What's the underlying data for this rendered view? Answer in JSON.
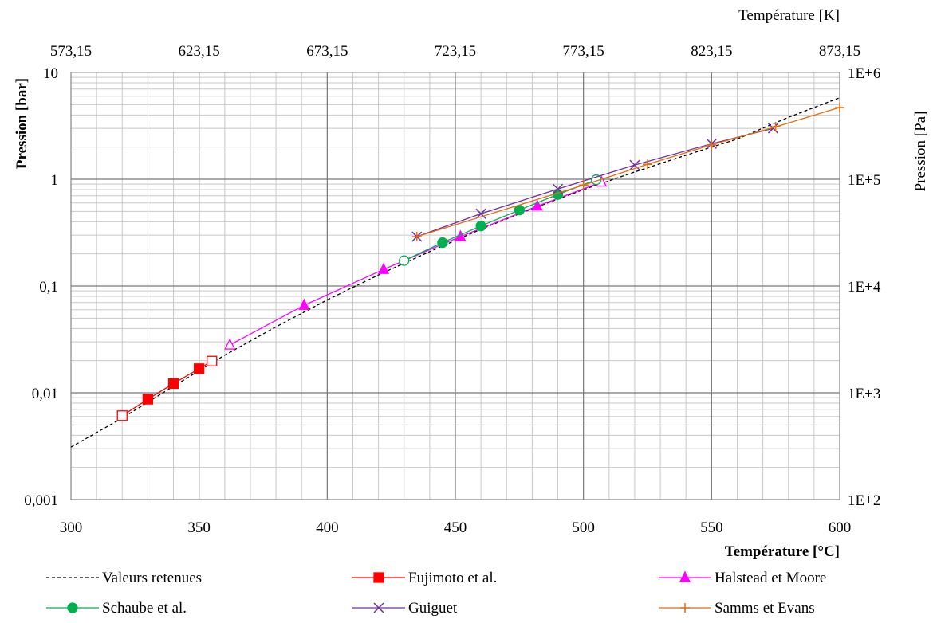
{
  "chart_data": {
    "type": "scatter",
    "x_axis": {
      "label": "Température [°C]",
      "range": [
        300,
        600
      ],
      "ticks": [
        "300",
        "350",
        "400",
        "450",
        "500",
        "550",
        "600"
      ],
      "tick_values": [
        300,
        350,
        400,
        450,
        500,
        550,
        600
      ]
    },
    "x2_axis": {
      "label": "Température [K]",
      "ticks": [
        "573,15",
        "623,15",
        "673,15",
        "723,15",
        "773,15",
        "823,15",
        "873,15"
      ],
      "tick_values": [
        300,
        350,
        400,
        450,
        500,
        550,
        600
      ]
    },
    "y_axis": {
      "label": "Pression [bar]",
      "scale": "log",
      "range": [
        0.001,
        10
      ],
      "ticks": [
        "0,001",
        "0,01",
        "0,1",
        "1",
        "10"
      ],
      "tick_values": [
        0.001,
        0.01,
        0.1,
        1,
        10
      ]
    },
    "y2_axis": {
      "label": "Pression [Pa]",
      "ticks": [
        "1E+2",
        "1E+3",
        "1E+4",
        "1E+5",
        "1E+6"
      ],
      "tick_values": [
        0.001,
        0.01,
        0.1,
        1,
        10
      ]
    },
    "grid": true,
    "legend_position": "bottom",
    "series": [
      {
        "name": "Valeurs retenues",
        "color": "#000000",
        "style": "dashed",
        "marker": "none",
        "points": [
          [
            300,
            0.0031
          ],
          [
            320,
            0.0058
          ],
          [
            340,
            0.0115
          ],
          [
            360,
            0.0225
          ],
          [
            380,
            0.0415
          ],
          [
            400,
            0.074
          ],
          [
            420,
            0.127
          ],
          [
            440,
            0.21
          ],
          [
            460,
            0.34
          ],
          [
            480,
            0.53
          ],
          [
            500,
            0.8
          ],
          [
            520,
            1.17
          ],
          [
            540,
            1.68
          ],
          [
            560,
            2.38
          ],
          [
            580,
            3.8
          ],
          [
            600,
            5.8
          ]
        ]
      },
      {
        "name": "Fujimoto et al.",
        "color": "#ff0000",
        "style": "solid",
        "marker": "square",
        "points": [
          [
            320,
            0.0061
          ],
          [
            330,
            0.0087
          ],
          [
            340,
            0.0122
          ],
          [
            350,
            0.0168
          ],
          [
            355,
            0.0198
          ]
        ],
        "hollow": [
          true,
          false,
          false,
          false,
          true
        ]
      },
      {
        "name": "Halstead et Moore",
        "color": "#ff00ff",
        "style": "solid",
        "marker": "triangle",
        "points": [
          [
            362,
            0.028
          ],
          [
            391,
            0.066
          ],
          [
            422,
            0.143
          ],
          [
            452,
            0.29
          ],
          [
            482,
            0.56
          ],
          [
            507,
            0.94
          ]
        ],
        "hollow": [
          true,
          false,
          false,
          false,
          false,
          true
        ]
      },
      {
        "name": "Schaube et al.",
        "color": "#00b050",
        "style": "solid",
        "marker": "circle",
        "points": [
          [
            430,
            0.173
          ],
          [
            445,
            0.255
          ],
          [
            460,
            0.365
          ],
          [
            475,
            0.515
          ],
          [
            490,
            0.72
          ],
          [
            505,
            0.99
          ]
        ],
        "hollow": [
          true,
          false,
          false,
          false,
          false,
          true
        ]
      },
      {
        "name": "Guiguet",
        "color": "#7030a0",
        "style": "solid",
        "marker": "x",
        "points": [
          [
            435,
            0.29
          ],
          [
            460,
            0.475
          ],
          [
            490,
            0.81
          ],
          [
            520,
            1.36
          ],
          [
            550,
            2.15
          ],
          [
            574,
            3.0
          ]
        ]
      },
      {
        "name": "Samms et Evans",
        "color": "#e46c0a",
        "style": "solid",
        "marker": "plus",
        "points": [
          [
            435,
            0.29
          ],
          [
            500,
            0.88
          ],
          [
            525,
            1.38
          ],
          [
            550,
            2.1
          ],
          [
            575,
            3.1
          ],
          [
            600,
            4.7
          ]
        ]
      }
    ]
  }
}
